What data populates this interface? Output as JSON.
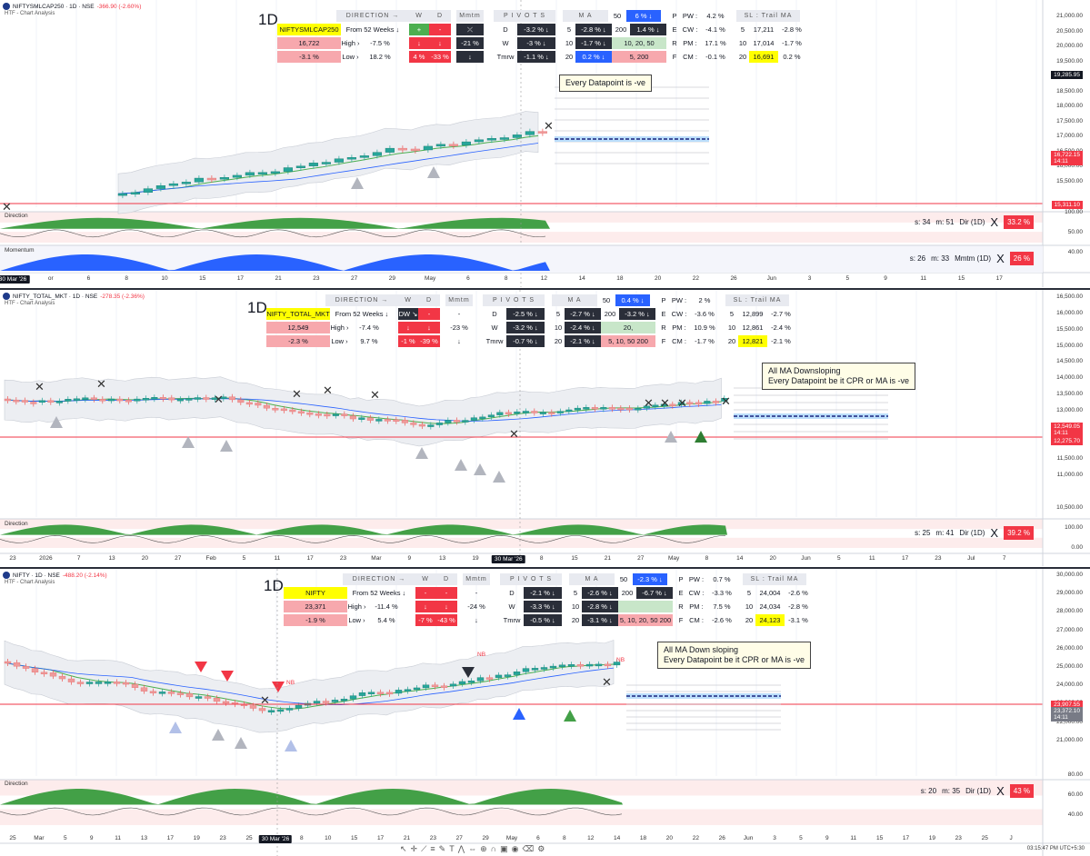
{
  "panels": [
    {
      "symbol": "NIFTYSMLCAP250 · 1D · NSE",
      "change": "-366.90 (-2.60%)",
      "subtitle": "HTF - Chart Analysis",
      "timeframe": "1D",
      "pane_labels": [
        "Direction",
        "Momentum"
      ],
      "table": {
        "direction_header": "DIRECTION →",
        "w": "W",
        "d": "D",
        "mmtm": "Mmtm",
        "pivots": "P I V O T S",
        "ma": "M A",
        "name": "NIFTYSMLCAP250",
        "from52": "From 52 Weeks ↓",
        "price": "16,722",
        "high_lbl": "High ›",
        "high_val": "-7.5 %",
        "chg": "-3.1 %",
        "low_lbl": "Low ›",
        "low_val": "18.2 %",
        "w_row1": "+",
        "d_row1": "-",
        "w_row2": "↓",
        "d_row2": "↓",
        "w_row3": "4 %",
        "d_row3": "-33 %",
        "mm_row1": "⤫",
        "mm_row2": "-21 %",
        "mm_row3": "↓",
        "pv_lbl": [
          "D",
          "W",
          "Tmrw"
        ],
        "pv_val": [
          "-3.2 % ↓",
          "-3 % ↓",
          "-1.1 % ↓"
        ],
        "ma_lbl": [
          "5",
          "10",
          "20"
        ],
        "ma_val": [
          "-2.8 % ↓",
          "-1.7 % ↓",
          "0.2 % ↓"
        ],
        "ma50_lbl": "50",
        "ma50_val": "6 % ↓",
        "ma200_lbl": "200",
        "ma200_val": "1.4 % ↓",
        "ma_list1": "10, 20, 50",
        "ma_list2": "5, 200",
        "pw_lbl": [
          "P",
          "E",
          "R",
          "F"
        ],
        "pw_name": [
          "PW :",
          "CW :",
          "PM :",
          "CM :"
        ],
        "pw_val": [
          "4.2 %",
          "-4.1 %",
          "17.1 %",
          "-0.1 %"
        ],
        "sl_header": "SL : Trail MA",
        "sl_lbl": [
          "5",
          "10",
          "20"
        ],
        "sl_val": [
          "17,211",
          "17,014",
          "16,691"
        ],
        "sl_pct": [
          "-2.8 %",
          "-1.7 %",
          "0.2 %"
        ]
      },
      "note": "Every Datapoint is -ve",
      "stats": [
        {
          "s": "s:  34",
          "m": "m:  51",
          "label": "Dir (1D)",
          "x": "X",
          "badge": "33.2 %"
        },
        {
          "s": "s:  26",
          "m": "m:  33",
          "label": "Mmtm (1D)",
          "x": "X",
          "badge": "26 %"
        }
      ],
      "price_tags": [
        {
          "text": "19,285.95",
          "color": "#131722"
        },
        {
          "text": "16,722.15\n14:11",
          "color": "#f23645"
        },
        {
          "text": "15,311.10",
          "color": "#f23645"
        }
      ],
      "y_labels": [
        "21,000.00",
        "20,500.00",
        "20,000.00",
        "19,500.00",
        "19,000.00",
        "18,500.00",
        "18,000.00",
        "17,500.00",
        "17,000.00",
        "16,500.00",
        "16,000.00",
        "15,500.00",
        "100.00",
        "50.00",
        "40.00"
      ],
      "x_labels": [
        "30 Mar '26",
        "or",
        "6",
        "8",
        "10",
        "15",
        "17",
        "21",
        "23",
        "27",
        "29",
        "May",
        "6",
        "8",
        "12",
        "14",
        "18",
        "20",
        "22",
        "26",
        "Jun",
        "3",
        "5",
        "9",
        "11",
        "15",
        "17"
      ]
    },
    {
      "symbol": "NIFTY_TOTAL_MKT · 1D · NSE",
      "change": "-278.35 (-2.36%)",
      "subtitle": "HTF - Chart Analysis",
      "timeframe": "1D",
      "pane_labels": [
        "Direction"
      ],
      "table": {
        "direction_header": "DIRECTION →",
        "w": "W",
        "d": "D",
        "mmtm": "Mmtm",
        "pivots": "P I V O T S",
        "ma": "M A",
        "name": "NIFTY_TOTAL_MKT",
        "from52": "From 52 Weeks ↓",
        "price": "12,549",
        "high_lbl": "High ›",
        "high_val": "-7.4 %",
        "chg": "-2.3 %",
        "low_lbl": "Low ›",
        "low_val": "9.7 %",
        "w_row1": "DW ↘",
        "d_row1": "-",
        "w_row2": "↓",
        "d_row2": "↓",
        "w_row3": "-1 %",
        "d_row3": "-39 %",
        "mm_row1": "-",
        "mm_row2": "-23 %",
        "mm_row3": "↓",
        "pv_lbl": [
          "D",
          "W",
          "Tmrw"
        ],
        "pv_val": [
          "-2.5 % ↓",
          "-3.2 % ↓",
          "-0.7 % ↓"
        ],
        "ma_lbl": [
          "5",
          "10",
          "20"
        ],
        "ma_val": [
          "-2.7 % ↓",
          "-2.4 % ↓",
          "-2.1 % ↓"
        ],
        "ma50_lbl": "50",
        "ma50_val": "0.4 % ↓",
        "ma200_lbl": "200",
        "ma200_val": "-3.2 % ↓",
        "ma_list1": "20,",
        "ma_list2": "5, 10, 50 200",
        "pw_lbl": [
          "P",
          "E",
          "R",
          "F"
        ],
        "pw_name": [
          "PW :",
          "CW :",
          "PM :",
          "CM :"
        ],
        "pw_val": [
          "2 %",
          "-3.6 %",
          "10.9 %",
          "-1.7 %"
        ],
        "sl_header": "SL : Trail MA",
        "sl_lbl": [
          "5",
          "10",
          "20"
        ],
        "sl_val": [
          "12,899",
          "12,861",
          "12,821"
        ],
        "sl_pct": [
          "-2.7 %",
          "-2.4 %",
          "-2.1 %"
        ]
      },
      "note": "All MA Downsloping\nEvery Datapoint be it CPR or MA is -ve",
      "stats": [
        {
          "s": "s:  25",
          "m": "m:  41",
          "label": "Dir (1D)",
          "x": "X",
          "badge": "39.2 %"
        }
      ],
      "price_tags": [
        {
          "text": "12,549.05\n14:11",
          "color": "#f23645"
        },
        {
          "text": "12,275.70",
          "color": "#f23645"
        }
      ],
      "y_labels": [
        "16,500.00",
        "16,000.00",
        "15,500.00",
        "15,000.00",
        "14,500.00",
        "14,000.00",
        "13,500.00",
        "13,000.00",
        "12,500.00",
        "12,000.00",
        "11,500.00",
        "11,000.00",
        "10,500.00",
        "100.00",
        "0.00"
      ],
      "x_labels": [
        "23",
        "2026",
        "7",
        "13",
        "20",
        "27",
        "Feb",
        "5",
        "11",
        "17",
        "23",
        "Mar",
        "9",
        "13",
        "19",
        "30 Mar '26",
        "8",
        "15",
        "21",
        "27",
        "May",
        "8",
        "14",
        "20",
        "Jun",
        "5",
        "11",
        "17",
        "23",
        "Jul",
        "7"
      ]
    },
    {
      "symbol": "NIFTY · 1D · NSE",
      "change": "-488.20 (-2.14%)",
      "subtitle": "HTF - Chart Analysis",
      "timeframe": "1D",
      "pane_labels": [
        "Direction"
      ],
      "table": {
        "direction_header": "DIRECTION →",
        "w": "W",
        "d": "D",
        "mmtm": "Mmtm",
        "pivots": "P I V O T S",
        "ma": "M A",
        "name": "NIFTY",
        "from52": "From 52 Weeks ↓",
        "price": "23,371",
        "high_lbl": "High ›",
        "high_val": "-11.4 %",
        "chg": "-1.9 %",
        "low_lbl": "Low ›",
        "low_val": "5.4 %",
        "w_row1": "-",
        "d_row1": "-",
        "w_row2": "↓",
        "d_row2": "↓",
        "w_row3": "-7 %",
        "d_row3": "-43 %",
        "mm_row1": "-",
        "mm_row2": "-24 %",
        "mm_row3": "↓",
        "pv_lbl": [
          "D",
          "W",
          "Tmrw"
        ],
        "pv_val": [
          "-2.1 % ↓",
          "-3.3 % ↓",
          "-0.5 % ↓"
        ],
        "ma_lbl": [
          "5",
          "10",
          "20"
        ],
        "ma_val": [
          "-2.6 % ↓",
          "-2.8 % ↓",
          "-3.1 % ↓"
        ],
        "ma50_lbl": "50",
        "ma50_val": "-2.3 % ↓",
        "ma200_lbl": "200",
        "ma200_val": "-6.7 % ↓",
        "ma_list1": "",
        "ma_list2": "5, 10, 20, 50 200",
        "pw_lbl": [
          "P",
          "E",
          "R",
          "F"
        ],
        "pw_name": [
          "PW :",
          "CW :",
          "PM :",
          "CM :"
        ],
        "pw_val": [
          "0.7 %",
          "-3.3 %",
          "7.5 %",
          "-2.6 %"
        ],
        "sl_header": "SL : Trail MA",
        "sl_lbl": [
          "5",
          "10",
          "20"
        ],
        "sl_val": [
          "24,004",
          "24,034",
          "24,123"
        ],
        "sl_pct": [
          "-2.6 %",
          "-2.8 %",
          "-3.1 %"
        ]
      },
      "note": "All MA Down sloping\nEvery Datapoint be it CPR or MA is -ve",
      "stats": [
        {
          "s": "s:  20",
          "m": "m:  35",
          "label": "Dir (1D)",
          "x": "X",
          "badge": "43 %"
        }
      ],
      "price_tags": [
        {
          "text": "23,907.55",
          "color": "#f23645"
        },
        {
          "text": "23,372.10\n14:11",
          "color": "#787b86"
        }
      ],
      "y_labels": [
        "30,000.00",
        "29,000.00",
        "28,000.00",
        "27,000.00",
        "26,000.00",
        "25,000.00",
        "24,000.00",
        "23,000.00",
        "22,000.00",
        "21,000.00",
        "80.00",
        "60.00",
        "40.00"
      ],
      "x_labels": [
        "25",
        "Mar",
        "5",
        "9",
        "11",
        "13",
        "17",
        "19",
        "23",
        "25",
        "30 Mar '26",
        "8",
        "10",
        "15",
        "17",
        "21",
        "23",
        "27",
        "29",
        "May",
        "6",
        "8",
        "12",
        "14",
        "18",
        "20",
        "22",
        "26",
        "Jun",
        "3",
        "5",
        "9",
        "11",
        "15",
        "17",
        "19",
        "23",
        "25",
        "J"
      ],
      "annotations": [
        "NB",
        "NB",
        "NB"
      ]
    }
  ],
  "toolbar_icons": [
    "cursor-icon",
    "crosshair-icon",
    "trendline-icon",
    "fib-icon",
    "brush-icon",
    "text-icon",
    "pattern-icon",
    "measure-icon",
    "zoom-icon",
    "magnet-icon",
    "lock-icon",
    "eye-icon",
    "trash-icon",
    "settings-icon"
  ],
  "clock": "03:15:47 PM UTC+5:30"
}
